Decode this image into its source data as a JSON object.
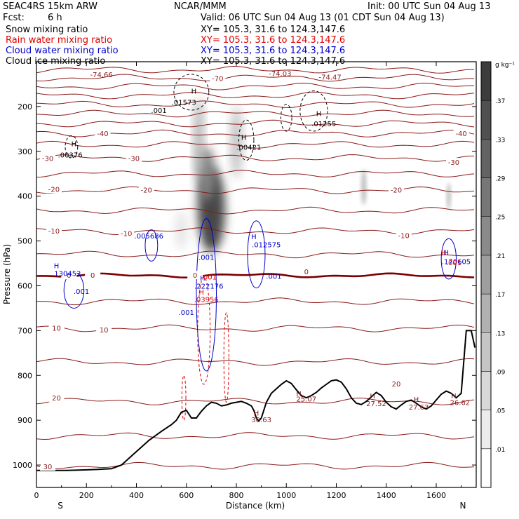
{
  "header": {
    "model": "SEAC4RS 15km ARW",
    "org": "NCAR/MMM",
    "init": "Init: 00 UTC Sun 04 Aug 13",
    "fcst_label": "Fcst:",
    "fcst_value": "6 h",
    "valid": "Valid: 06 UTC Sun 04 Aug 13 (01 CDT Sun 04 Aug 13)"
  },
  "fields": [
    {
      "label": "Snow mixing ratio",
      "xy": "XY= 105.3, 31.6 to 124.3,147.6",
      "color": "#000000"
    },
    {
      "label": "Rain water mixing ratio",
      "xy": "XY= 105.3, 31.6 to 124.3,147.6",
      "color": "#e00000"
    },
    {
      "label": "Cloud water mixing ratio",
      "xy": "XY= 105.3, 31.6 to 124.3,147.6",
      "color": "#0000cc"
    },
    {
      "label": "Cloud ice mixing ratio",
      "xy": "XY= 105.3, 31.6 to 124.3,147.6",
      "color": "#000000"
    }
  ],
  "chart_data": {
    "type": "heatmap",
    "title": "",
    "xlabel": "Distance (km)",
    "ylabel": "Pressure (hPa)",
    "xlim": [
      0,
      1760
    ],
    "ylim": [
      1050,
      100
    ],
    "x_ticks": [
      0,
      200,
      400,
      600,
      800,
      1000,
      1200,
      1400,
      1600
    ],
    "y_ticks": [
      200,
      300,
      400,
      500,
      600,
      700,
      800,
      900,
      1000
    ],
    "x_end_labels": {
      "left": "S",
      "right": "N"
    },
    "colorbar": {
      "unit": "g kg⁻¹",
      "levels": [
        0.01,
        0.05,
        0.09,
        0.13,
        0.17,
        0.21,
        0.25,
        0.29,
        0.33,
        0.37
      ],
      "level_labels": [
        ".01",
        ".05",
        ".09",
        ".13",
        ".17",
        ".21",
        ".25",
        ".29",
        ".33",
        ".37"
      ]
    },
    "temperature_contours": {
      "color": "#8b1a1a",
      "zero_color": "#7a0000",
      "levels": [
        {
          "value": 30,
          "p": 1002,
          "labels": [
            {
              "text": "30",
              "x": 45,
              "p": 1003
            }
          ]
        },
        {
          "value": 25,
          "p": 935,
          "labels": []
        },
        {
          "value": 20,
          "p": 858,
          "labels": [
            {
              "text": "20",
              "x": 80,
              "p": 850
            },
            {
              "text": "20",
              "x": 1440,
              "p": 818
            }
          ]
        },
        {
          "value": 15,
          "p": 770,
          "labels": []
        },
        {
          "value": 10,
          "p": 695,
          "labels": [
            {
              "text": "10",
              "x": 80,
              "p": 694
            },
            {
              "text": "10",
              "x": 270,
              "p": 698
            }
          ]
        },
        {
          "value": 5,
          "p": 635,
          "labels": []
        },
        {
          "value": 0,
          "p": 577,
          "labels": [
            {
              "text": "0",
              "x": 130,
              "p": 576
            },
            {
              "text": "0",
              "x": 225,
              "p": 576
            },
            {
              "text": "0",
              "x": 635,
              "p": 576
            },
            {
              "text": "0",
              "x": 1080,
              "p": 568
            }
          ]
        },
        {
          "value": -5,
          "p": 530,
          "labels": []
        },
        {
          "value": -10,
          "p": 478,
          "labels": [
            {
              "text": "-10",
              "x": 70,
              "p": 477
            },
            {
              "text": "-10",
              "x": 360,
              "p": 483
            },
            {
              "text": "-10",
              "x": 1470,
              "p": 487
            }
          ]
        },
        {
          "value": -15,
          "p": 432,
          "labels": []
        },
        {
          "value": -20,
          "p": 387,
          "labels": [
            {
              "text": "-20",
              "x": 70,
              "p": 384
            },
            {
              "text": "-20",
              "x": 440,
              "p": 386
            },
            {
              "text": "-20",
              "x": 1440,
              "p": 386
            }
          ]
        },
        {
          "value": -25,
          "p": 350,
          "labels": []
        },
        {
          "value": -30,
          "p": 315,
          "labels": [
            {
              "text": "-30",
              "x": 45,
              "p": 315
            },
            {
              "text": "-30",
              "x": 390,
              "p": 315
            },
            {
              "text": "-30",
              "x": 1670,
              "p": 324
            }
          ]
        },
        {
          "value": -35,
          "p": 285,
          "labels": []
        },
        {
          "value": -40,
          "p": 260,
          "labels": [
            {
              "text": "-40",
              "x": 265,
              "p": 260
            },
            {
              "text": "-40",
              "x": 1700,
              "p": 260
            }
          ]
        },
        {
          "value": -45,
          "p": 238,
          "labels": []
        },
        {
          "value": -50,
          "p": 216,
          "labels": []
        },
        {
          "value": -55,
          "p": 195,
          "labels": []
        },
        {
          "value": -60,
          "p": 175,
          "labels": []
        },
        {
          "value": -65,
          "p": 155,
          "labels": []
        },
        {
          "value": -70,
          "p": 136,
          "labels": [
            {
              "text": "-70",
              "x": 725,
              "p": 137
            }
          ]
        },
        {
          "value": -75,
          "p": 118,
          "labels": []
        }
      ],
      "extrema": [
        {
          "text": "-74.66",
          "x": 260,
          "p": 128
        },
        {
          "text": "-74.03",
          "x": 975,
          "p": 126
        },
        {
          "text": "-74.47",
          "x": 1175,
          "p": 134
        },
        {
          "text": "30.63",
          "x": 900,
          "p": 898
        },
        {
          "text": "25.07",
          "x": 1080,
          "p": 852
        },
        {
          "text": "27.52",
          "x": 1360,
          "p": 862
        },
        {
          "text": "27.63",
          "x": 1530,
          "p": 870
        },
        {
          "text": "26.62",
          "x": 1695,
          "p": 860
        }
      ],
      "highs": [
        {
          "x": 880,
          "p": 883
        },
        {
          "x": 1050,
          "p": 840
        },
        {
          "x": 1345,
          "p": 845
        },
        {
          "x": 1520,
          "p": 853
        },
        {
          "x": 1670,
          "p": 845
        }
      ]
    },
    "snow_shading": [
      {
        "x": 700,
        "p": 430,
        "rx": 55,
        "rp": 95,
        "value": 0.37
      },
      {
        "x": 680,
        "p": 350,
        "rx": 35,
        "rp": 60,
        "value": 0.25
      },
      {
        "x": 650,
        "p": 270,
        "rx": 18,
        "rp": 90,
        "value": 0.17
      },
      {
        "x": 800,
        "p": 280,
        "rx": 22,
        "rp": 80,
        "value": 0.13
      },
      {
        "x": 580,
        "p": 475,
        "rx": 25,
        "rp": 45,
        "value": 0.05
      },
      {
        "x": 1310,
        "p": 380,
        "rx": 10,
        "rp": 40,
        "value": 0.13
      },
      {
        "x": 1650,
        "p": 400,
        "rx": 8,
        "rp": 30,
        "value": 0.13
      }
    ],
    "cloud_ice": {
      "labels": [
        {
          "text": ".01573",
          "x": 590,
          "p": 190
        },
        {
          "text": ".001",
          "x": 490,
          "p": 208
        },
        {
          "text": ".01255",
          "x": 1150,
          "p": 238
        },
        {
          "text": ".00421",
          "x": 850,
          "p": 290
        },
        {
          "text": ".00376",
          "x": 135,
          "p": 307
        }
      ],
      "highs": [
        {
          "x": 630,
          "p": 165
        },
        {
          "x": 1130,
          "p": 215
        },
        {
          "x": 830,
          "p": 268
        },
        {
          "x": 150,
          "p": 282
        }
      ]
    },
    "cloud_water": {
      "labels": [
        {
          "text": ".005686",
          "x": 450,
          "p": 488
        },
        {
          "text": ".012575",
          "x": 920,
          "p": 508
        },
        {
          "text": ".001",
          "x": 680,
          "p": 536
        },
        {
          "text": ".130453",
          "x": 120,
          "p": 572
        },
        {
          "text": ".001",
          "x": 950,
          "p": 578
        },
        {
          "text": ".222176",
          "x": 690,
          "p": 600
        },
        {
          "text": ".001",
          "x": 180,
          "p": 612
        },
        {
          "text": ".001",
          "x": 600,
          "p": 659
        },
        {
          "text": ".170605",
          "x": 1680,
          "p": 545
        }
      ],
      "highs": [
        {
          "x": 870,
          "p": 490
        },
        {
          "x": 80,
          "p": 555
        },
        {
          "x": 665,
          "p": 582
        },
        {
          "x": 1640,
          "p": 525
        }
      ]
    },
    "rain_water": {
      "labels": [
        {
          "text": ".001",
          "x": 690,
          "p": 580
        },
        {
          "text": ".03956",
          "x": 680,
          "p": 630
        },
        {
          "text": ".001",
          "x": 1670,
          "p": 548
        }
      ],
      "highs": [
        {
          "x": 660,
          "p": 613
        },
        {
          "x": 1630,
          "p": 525
        }
      ]
    },
    "terrain": {
      "x": [
        0,
        60,
        120,
        180,
        240,
        300,
        340,
        380,
        420,
        450,
        500,
        540,
        560,
        580,
        600,
        620,
        640,
        660,
        680,
        700,
        720,
        740,
        760,
        780,
        800,
        820,
        840,
        860,
        870,
        880,
        890,
        900,
        920,
        940,
        960,
        980,
        1000,
        1020,
        1040,
        1060,
        1080,
        1100,
        1120,
        1140,
        1160,
        1180,
        1200,
        1220,
        1240,
        1260,
        1280,
        1300,
        1320,
        1340,
        1360,
        1380,
        1400,
        1420,
        1440,
        1460,
        1480,
        1500,
        1520,
        1540,
        1560,
        1580,
        1600,
        1620,
        1640,
        1660,
        1680,
        1700,
        1720,
        1740,
        1755
      ],
      "p": [
        1012,
        1012,
        1012,
        1011,
        1010,
        1008,
        1000,
        980,
        960,
        945,
        925,
        910,
        900,
        882,
        878,
        895,
        895,
        880,
        868,
        860,
        862,
        868,
        866,
        862,
        860,
        858,
        862,
        868,
        878,
        895,
        902,
        895,
        860,
        840,
        830,
        820,
        812,
        818,
        832,
        845,
        850,
        845,
        838,
        828,
        820,
        812,
        810,
        815,
        830,
        850,
        862,
        865,
        858,
        848,
        838,
        845,
        860,
        870,
        875,
        866,
        858,
        855,
        862,
        870,
        875,
        868,
        855,
        842,
        835,
        840,
        850,
        840,
        700,
        700,
        738
      ]
    }
  }
}
